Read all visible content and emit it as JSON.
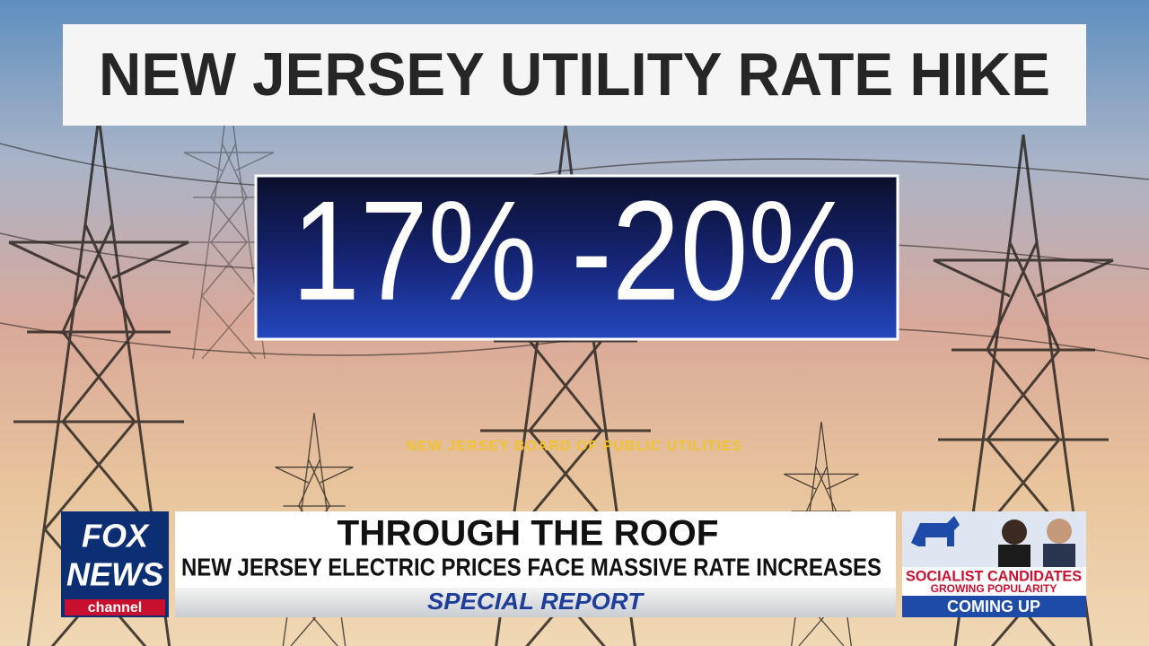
{
  "graphic": {
    "title": "NEW JERSEY UTILITY RATE HIKE",
    "figure": "17% -20%",
    "source": "NEW JERSEY BOARD OF PUBLIC UTILITIES"
  },
  "lower_third": {
    "logo": {
      "line1": "FOX",
      "line2": "NEWS",
      "line3": "channel"
    },
    "headline": "THROUGH THE ROOF",
    "subheadline": "NEW JERSEY ELECTRIC PRICES FACE MASSIVE RATE INCREASES",
    "show": "SPECIAL REPORT"
  },
  "promo": {
    "line1": "SOCIALIST CANDIDATES",
    "line2": "GROWING POPULARITY",
    "footer": "COMING UP"
  }
}
